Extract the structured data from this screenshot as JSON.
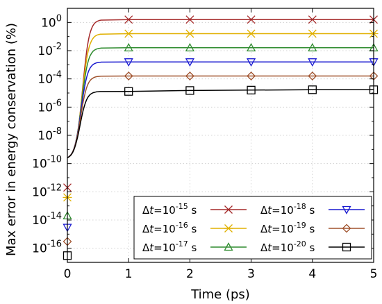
{
  "chart_data": {
    "type": "line",
    "xlabel": "Time (ps)",
    "ylabel": "Max error in energy conservation (%)",
    "xlim": [
      0,
      5
    ],
    "ylim_log10": [
      -17,
      1
    ],
    "y_scale": "log",
    "grid": "dotted",
    "legend_placement": "bottom-right",
    "x_ticks": [
      "0",
      "1",
      "2",
      "3",
      "4",
      "5"
    ],
    "y_ticks": [
      {
        "base": "10",
        "exp": "0"
      },
      {
        "base": "10",
        "exp": "-2"
      },
      {
        "base": "10",
        "exp": "-4"
      },
      {
        "base": "10",
        "exp": "-6"
      },
      {
        "base": "10",
        "exp": "-8"
      },
      {
        "base": "10",
        "exp": "-10"
      },
      {
        "base": "10",
        "exp": "-12"
      },
      {
        "base": "10",
        "exp": "-14"
      },
      {
        "base": "10",
        "exp": "-16"
      }
    ],
    "series": [
      {
        "name": {
          "prefix": "Δ",
          "var": "t",
          "mid": "=10",
          "exp": "-15",
          "suffix": " s"
        },
        "color": "#a52a2a",
        "marker": "x",
        "x": [
          0,
          1,
          2,
          3,
          4,
          5
        ],
        "y": [
          2e-12,
          1.6,
          1.6,
          1.6,
          1.6,
          1.6
        ]
      },
      {
        "name": {
          "prefix": "Δ",
          "var": "t",
          "mid": "=10",
          "exp": "-16",
          "suffix": " s"
        },
        "color": "#e0b000",
        "marker": "asterisk",
        "x": [
          0,
          1,
          2,
          3,
          4,
          5
        ],
        "y": [
          4e-13,
          0.16,
          0.16,
          0.16,
          0.16,
          0.16
        ]
      },
      {
        "name": {
          "prefix": "Δ",
          "var": "t",
          "mid": "=10",
          "exp": "-17",
          "suffix": " s"
        },
        "color": "#2e8b2e",
        "marker": "triangle-up",
        "x": [
          0,
          1,
          2,
          3,
          4,
          5
        ],
        "y": [
          2e-14,
          0.016,
          0.016,
          0.016,
          0.016,
          0.016
        ]
      },
      {
        "name": {
          "prefix": "Δ",
          "var": "t",
          "mid": "=10",
          "exp": "-18",
          "suffix": " s"
        },
        "color": "#1a1ad0",
        "marker": "triangle-down",
        "x": [
          0,
          1,
          2,
          3,
          4,
          5
        ],
        "y": [
          3e-15,
          0.0016,
          0.0016,
          0.0016,
          0.0016,
          0.0016
        ]
      },
      {
        "name": {
          "prefix": "Δ",
          "var": "t",
          "mid": "=10",
          "exp": "-19",
          "suffix": " s"
        },
        "color": "#a0522d",
        "marker": "diamond",
        "x": [
          0,
          1,
          2,
          3,
          4,
          5
        ],
        "y": [
          3e-16,
          0.00016,
          0.00016,
          0.00016,
          0.00016,
          0.00016
        ]
      },
      {
        "name": {
          "prefix": "Δ",
          "var": "t",
          "mid": "=10",
          "exp": "-20",
          "suffix": " s"
        },
        "color": "#000000",
        "marker": "square",
        "x": [
          0,
          1,
          2,
          3,
          4,
          5
        ],
        "y": [
          3e-17,
          1.3e-05,
          1.5e-05,
          1.6e-05,
          1.7e-05,
          1.7e-05
        ]
      }
    ]
  }
}
